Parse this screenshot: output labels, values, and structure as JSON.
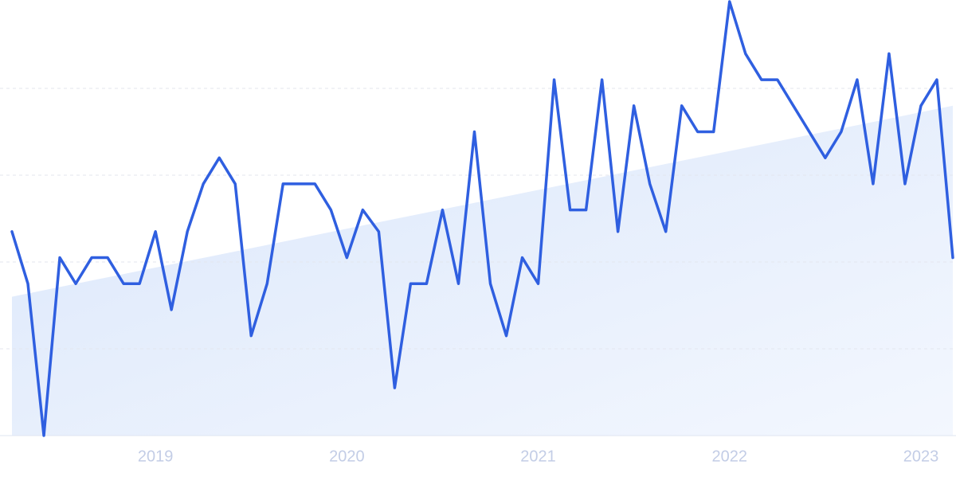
{
  "chart_data": {
    "type": "line",
    "values": [
      47,
      35,
      0,
      41,
      35,
      41,
      41,
      35,
      35,
      47,
      29,
      47,
      58,
      64,
      58,
      23,
      35,
      58,
      58,
      58,
      52,
      41,
      52,
      47,
      11,
      35,
      35,
      52,
      35,
      70,
      35,
      23,
      41,
      35,
      82,
      52,
      52,
      82,
      47,
      76,
      58,
      47,
      76,
      70,
      70,
      100,
      88,
      82,
      82,
      76,
      70,
      64,
      70,
      82,
      58,
      88,
      58,
      76,
      82,
      41
    ],
    "color": "#2f5fe0",
    "trend_values": [
      32,
      76
    ],
    "trend_color": "#dce8fb",
    "xlim": [
      0,
      59
    ],
    "xticks": [
      {
        "value": 9,
        "label": "2019"
      },
      {
        "value": 21,
        "label": "2020"
      },
      {
        "value": 33,
        "label": "2021"
      },
      {
        "value": 45,
        "label": "2022"
      },
      {
        "value": 57,
        "label": "2023"
      }
    ],
    "ylim": [
      0,
      100
    ],
    "yticks": [
      20,
      40,
      60,
      80
    ],
    "grid": true
  }
}
